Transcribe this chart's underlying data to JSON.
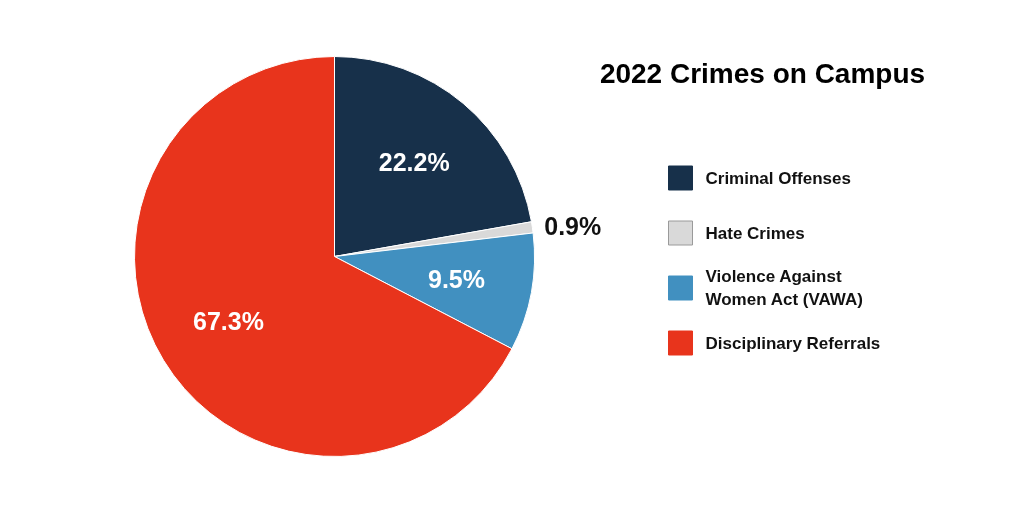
{
  "chart_data": {
    "type": "pie",
    "title": "2022 Crimes on Campus",
    "categories": [
      "Criminal Offenses",
      "Hate Crimes",
      "Violence Against Women Act (VAWA)",
      "Disciplinary Referrals"
    ],
    "values": [
      22.2,
      0.9,
      9.5,
      67.3
    ],
    "colors": [
      "#17304a",
      "#d9d9d9",
      "#4190c0",
      "#e8341c"
    ],
    "value_labels": [
      "22.2%",
      "0.9%",
      "9.5%",
      "67.3%"
    ],
    "legend": "right"
  }
}
